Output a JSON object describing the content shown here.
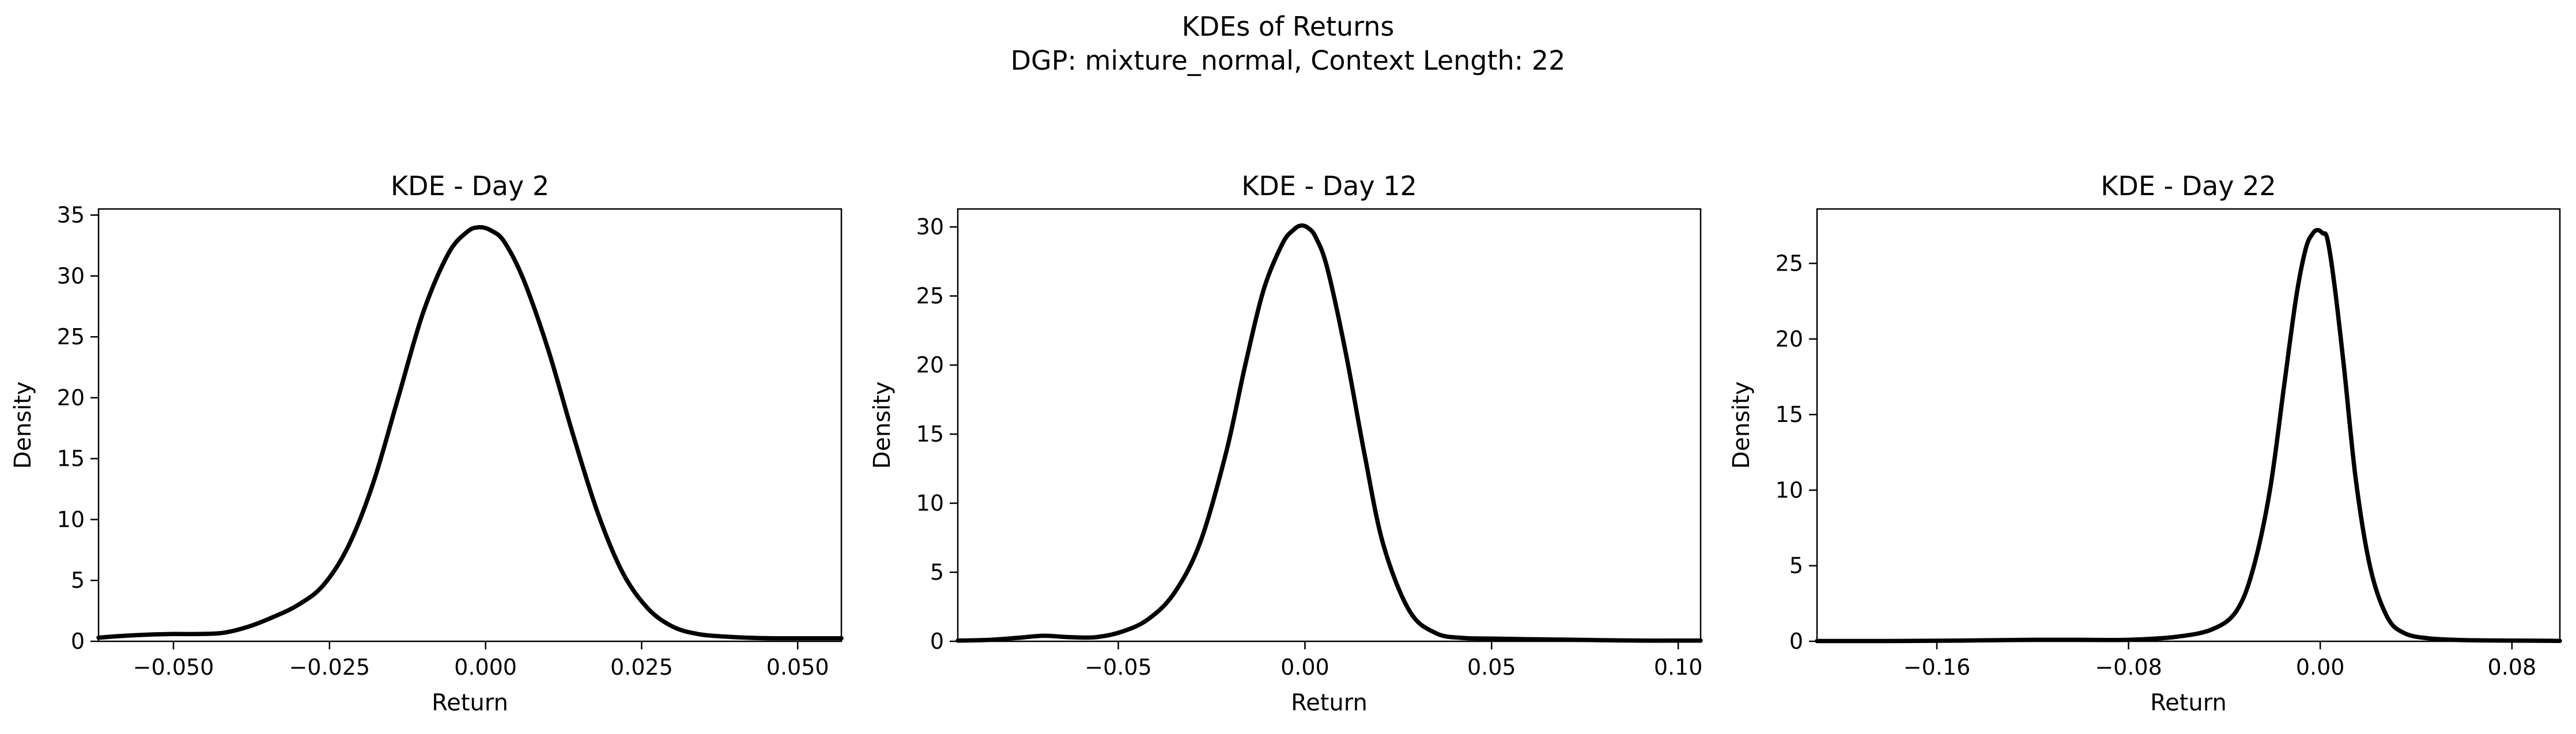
{
  "figure": {
    "title_line1": "KDEs of Returns",
    "title_line2": "DGP: mixture_normal, Context Length: 22"
  },
  "chart_data": [
    {
      "type": "line",
      "title": "KDE - Day 2",
      "xlabel": "Return",
      "ylabel": "Density",
      "xlim": [
        -0.062,
        0.057
      ],
      "ylim": [
        0,
        35.5
      ],
      "xticks": [
        -0.05,
        -0.025,
        0.0,
        0.025,
        0.05
      ],
      "xtick_labels": [
        "−0.050",
        "−0.025",
        "0.000",
        "0.025",
        "0.050"
      ],
      "yticks": [
        0,
        5,
        10,
        15,
        20,
        25,
        30,
        35
      ],
      "ytick_labels": [
        "0",
        "5",
        "10",
        "15",
        "20",
        "25",
        "30",
        "35"
      ],
      "line_color": "#000000",
      "series": [
        {
          "x": [
            -0.062,
            -0.058,
            -0.054,
            -0.05,
            -0.046,
            -0.042,
            -0.038,
            -0.034,
            -0.03,
            -0.026,
            -0.022,
            -0.018,
            -0.014,
            -0.01,
            -0.006,
            -0.003,
            -0.001,
            0.001,
            0.003,
            0.006,
            0.01,
            0.014,
            0.018,
            0.022,
            0.026,
            0.03,
            0.034,
            0.038,
            0.042,
            0.046,
            0.05,
            0.054,
            0.057
          ],
          "y": [
            0.3,
            0.45,
            0.55,
            0.6,
            0.6,
            0.7,
            1.2,
            2.0,
            3.0,
            4.6,
            7.8,
            13.0,
            20.0,
            27.0,
            31.8,
            33.6,
            34.0,
            33.7,
            32.8,
            29.8,
            24.0,
            17.0,
            10.5,
            5.6,
            2.7,
            1.2,
            0.6,
            0.4,
            0.3,
            0.25,
            0.25,
            0.25,
            0.25
          ]
        }
      ]
    },
    {
      "type": "line",
      "title": "KDE - Day 12",
      "xlabel": "Return",
      "ylabel": "Density",
      "xlim": [
        -0.093,
        0.106
      ],
      "ylim": [
        0,
        31.3
      ],
      "xticks": [
        -0.05,
        0.0,
        0.05,
        0.1
      ],
      "xtick_labels": [
        "−0.05",
        "0.00",
        "0.05",
        "0.10"
      ],
      "yticks": [
        0,
        5,
        10,
        15,
        20,
        25,
        30
      ],
      "ytick_labels": [
        "0",
        "5",
        "10",
        "15",
        "20",
        "25",
        "30"
      ],
      "line_color": "#000000",
      "series": [
        {
          "x": [
            -0.093,
            -0.085,
            -0.077,
            -0.07,
            -0.063,
            -0.056,
            -0.049,
            -0.042,
            -0.035,
            -0.028,
            -0.021,
            -0.016,
            -0.011,
            -0.006,
            -0.003,
            -0.001,
            0.001,
            0.003,
            0.006,
            0.011,
            0.016,
            0.021,
            0.028,
            0.035,
            0.042,
            0.05,
            0.06,
            0.07,
            0.08,
            0.09,
            0.1,
            0.106
          ],
          "y": [
            0.05,
            0.1,
            0.25,
            0.4,
            0.3,
            0.3,
            0.7,
            1.6,
            3.5,
            7.2,
            13.8,
            20.0,
            25.5,
            28.8,
            29.8,
            30.1,
            29.9,
            29.2,
            27.0,
            20.8,
            13.5,
            7.0,
            2.2,
            0.6,
            0.25,
            0.2,
            0.15,
            0.12,
            0.08,
            0.05,
            0.05,
            0.05
          ]
        }
      ]
    },
    {
      "type": "line",
      "title": "KDE - Day 22",
      "xlabel": "Return",
      "ylabel": "Density",
      "xlim": [
        -0.21,
        0.1
      ],
      "ylim": [
        0,
        28.6
      ],
      "xticks": [
        -0.16,
        -0.08,
        0.0,
        0.08
      ],
      "xtick_labels": [
        "−0.16",
        "−0.08",
        "0.00",
        "0.08"
      ],
      "yticks": [
        0,
        5,
        10,
        15,
        20,
        25
      ],
      "ytick_labels": [
        "0",
        "5",
        "10",
        "15",
        "20",
        "25"
      ],
      "line_color": "#000000",
      "series": [
        {
          "x": [
            -0.21,
            -0.18,
            -0.15,
            -0.12,
            -0.1,
            -0.08,
            -0.06,
            -0.045,
            -0.035,
            -0.028,
            -0.021,
            -0.015,
            -0.01,
            -0.006,
            -0.003,
            -0.001,
            0.001,
            0.003,
            0.006,
            0.01,
            0.015,
            0.021,
            0.028,
            0.035,
            0.045,
            0.06,
            0.08,
            0.1
          ],
          "y": [
            0.02,
            0.02,
            0.05,
            0.1,
            0.1,
            0.1,
            0.3,
            0.8,
            2.0,
            4.8,
            10.0,
            17.0,
            22.8,
            26.0,
            27.0,
            27.2,
            27.0,
            26.6,
            23.5,
            18.0,
            10.5,
            4.8,
            1.6,
            0.55,
            0.2,
            0.08,
            0.05,
            0.03
          ]
        }
      ]
    }
  ]
}
